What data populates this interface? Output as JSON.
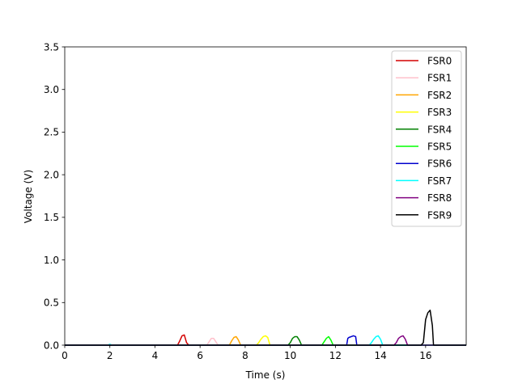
{
  "chart_data": {
    "type": "line",
    "title": "",
    "xlabel": "Time (s)",
    "ylabel": "Voltage (V)",
    "xlim": [
      0,
      17.8
    ],
    "ylim": [
      0,
      3.5
    ],
    "xticks": [
      0,
      2,
      4,
      6,
      8,
      10,
      12,
      14,
      16
    ],
    "yticks": [
      0.0,
      0.5,
      1.0,
      1.5,
      2.0,
      2.5,
      3.0,
      3.5
    ],
    "xtick_labels": [
      "0",
      "2",
      "4",
      "6",
      "8",
      "10",
      "12",
      "14",
      "16"
    ],
    "ytick_labels": [
      "0.0",
      "0.5",
      "1.0",
      "1.5",
      "2.0",
      "2.5",
      "3.0",
      "3.5"
    ],
    "grid": false,
    "legend_position": "top-right",
    "series": [
      {
        "name": "FSR0",
        "color": "#d40000",
        "x": [
          0,
          5.0,
          5.1,
          5.2,
          5.3,
          5.4,
          5.5,
          17.8
        ],
        "y": [
          0,
          0,
          0.05,
          0.11,
          0.12,
          0.03,
          0,
          0
        ]
      },
      {
        "name": "FSR1",
        "color": "#ffc0cb",
        "x": [
          0,
          6.3,
          6.4,
          6.5,
          6.6,
          6.7,
          6.8,
          17.8
        ],
        "y": [
          0,
          0,
          0.04,
          0.08,
          0.08,
          0.04,
          0,
          0
        ]
      },
      {
        "name": "FSR2",
        "color": "#ffa500",
        "x": [
          0,
          7.3,
          7.4,
          7.5,
          7.6,
          7.7,
          7.8,
          17.8
        ],
        "y": [
          0,
          0,
          0.05,
          0.09,
          0.1,
          0.06,
          0,
          0
        ]
      },
      {
        "name": "FSR3",
        "color": "#ffff00",
        "x": [
          0,
          8.5,
          8.6,
          8.7,
          8.8,
          8.9,
          9.0,
          9.1,
          17.8
        ],
        "y": [
          0,
          0,
          0.03,
          0.07,
          0.1,
          0.11,
          0.09,
          0,
          0
        ]
      },
      {
        "name": "FSR4",
        "color": "#008000",
        "x": [
          0,
          9.9,
          10.0,
          10.1,
          10.2,
          10.3,
          10.4,
          10.5,
          17.8
        ],
        "y": [
          0,
          0,
          0.03,
          0.08,
          0.1,
          0.1,
          0.06,
          0,
          0
        ]
      },
      {
        "name": "FSR5",
        "color": "#00ff00",
        "x": [
          0,
          11.4,
          11.5,
          11.6,
          11.7,
          11.8,
          11.9,
          17.8
        ],
        "y": [
          0,
          0,
          0.04,
          0.08,
          0.1,
          0.06,
          0,
          0
        ]
      },
      {
        "name": "FSR6",
        "color": "#0000cd",
        "x": [
          0,
          12.5,
          12.55,
          12.6,
          12.8,
          12.9,
          12.95,
          17.8
        ],
        "y": [
          0,
          0,
          0.08,
          0.09,
          0.11,
          0.1,
          0,
          0
        ]
      },
      {
        "name": "FSR7",
        "color": "#00ffff",
        "x": [
          0,
          1.9,
          2.0,
          2.1,
          13.5,
          13.6,
          13.7,
          13.8,
          13.9,
          14.0,
          14.1,
          17.8
        ],
        "y": [
          0,
          0,
          0.01,
          0,
          0,
          0.03,
          0.07,
          0.1,
          0.11,
          0.07,
          0,
          0
        ]
      },
      {
        "name": "FSR8",
        "color": "#800080",
        "x": [
          0,
          14.6,
          14.7,
          14.8,
          14.9,
          15.0,
          15.1,
          15.2,
          17.8
        ],
        "y": [
          0,
          0,
          0.03,
          0.08,
          0.1,
          0.11,
          0.07,
          0,
          0
        ]
      },
      {
        "name": "FSR9",
        "color": "#000000",
        "x": [
          0,
          15.8,
          15.9,
          16.0,
          16.1,
          16.2,
          16.3,
          16.35,
          17.8
        ],
        "y": [
          0,
          0,
          0.03,
          0.3,
          0.38,
          0.41,
          0.23,
          0,
          0
        ]
      }
    ]
  }
}
